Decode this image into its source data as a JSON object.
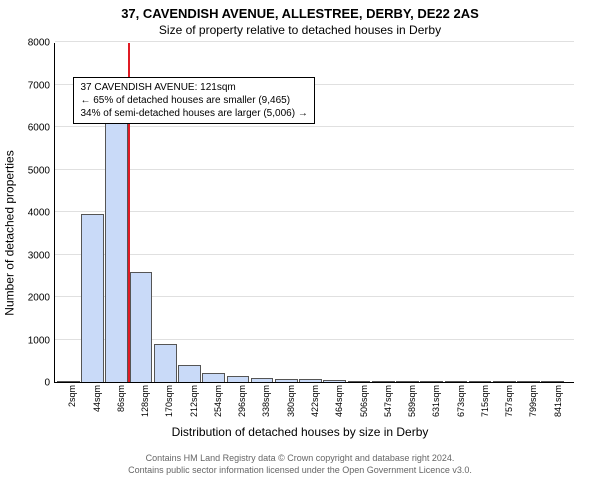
{
  "title": "37, CAVENDISH AVENUE, ALLESTREE, DERBY, DE22 2AS",
  "subtitle": "Size of property relative to detached houses in Derby",
  "ylabel": "Number of detached properties",
  "xlabel": "Distribution of detached houses by size in Derby",
  "chart": {
    "type": "bar",
    "ylim": [
      0,
      8000
    ],
    "ytick_step": 1000,
    "bar_fill": "#c9daf8",
    "bar_border": "#555",
    "marker_color": "#e01b24",
    "background": "#ffffff",
    "grid_color": "#e0e0e0",
    "bar_width": 0.85,
    "x_min": 0,
    "x_max": 860,
    "categories": [
      2,
      44,
      86,
      128,
      170,
      212,
      254,
      296,
      338,
      380,
      422,
      464,
      506,
      547,
      589,
      631,
      673,
      715,
      757,
      799,
      841
    ],
    "values": [
      0,
      3950,
      6700,
      2580,
      900,
      400,
      220,
      150,
      100,
      80,
      60,
      40,
      30,
      20,
      15,
      12,
      10,
      8,
      6,
      5,
      4
    ],
    "marker_x": 121
  },
  "annotation": {
    "line1": "37 CAVENDISH AVENUE: 121sqm",
    "line2": "← 65% of detached houses are smaller (9,465)",
    "line3": "34% of semi-detached houses are larger (5,006) →"
  },
  "footer_line1": "Contains HM Land Registry data © Crown copyright and database right 2024.",
  "footer_line2": "Contains public sector information licensed under the Open Government Licence v3.0."
}
